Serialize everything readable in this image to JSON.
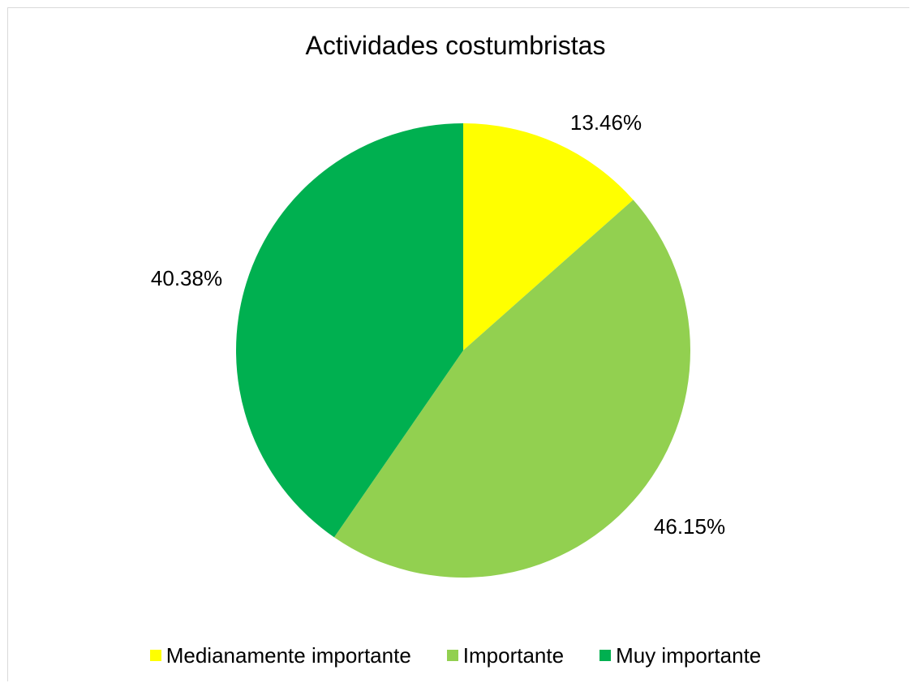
{
  "chart_data": {
    "type": "pie",
    "title": "Actividades costumbristas",
    "categories": [
      "Medianamente importante",
      "Importante",
      "Muy importante"
    ],
    "values": [
      13.46,
      46.15,
      40.38
    ],
    "labels": [
      "13.46%",
      "46.15%",
      "40.38%"
    ],
    "colors": [
      "#ffff00",
      "#92d050",
      "#00b050"
    ],
    "legend_position": "bottom"
  }
}
